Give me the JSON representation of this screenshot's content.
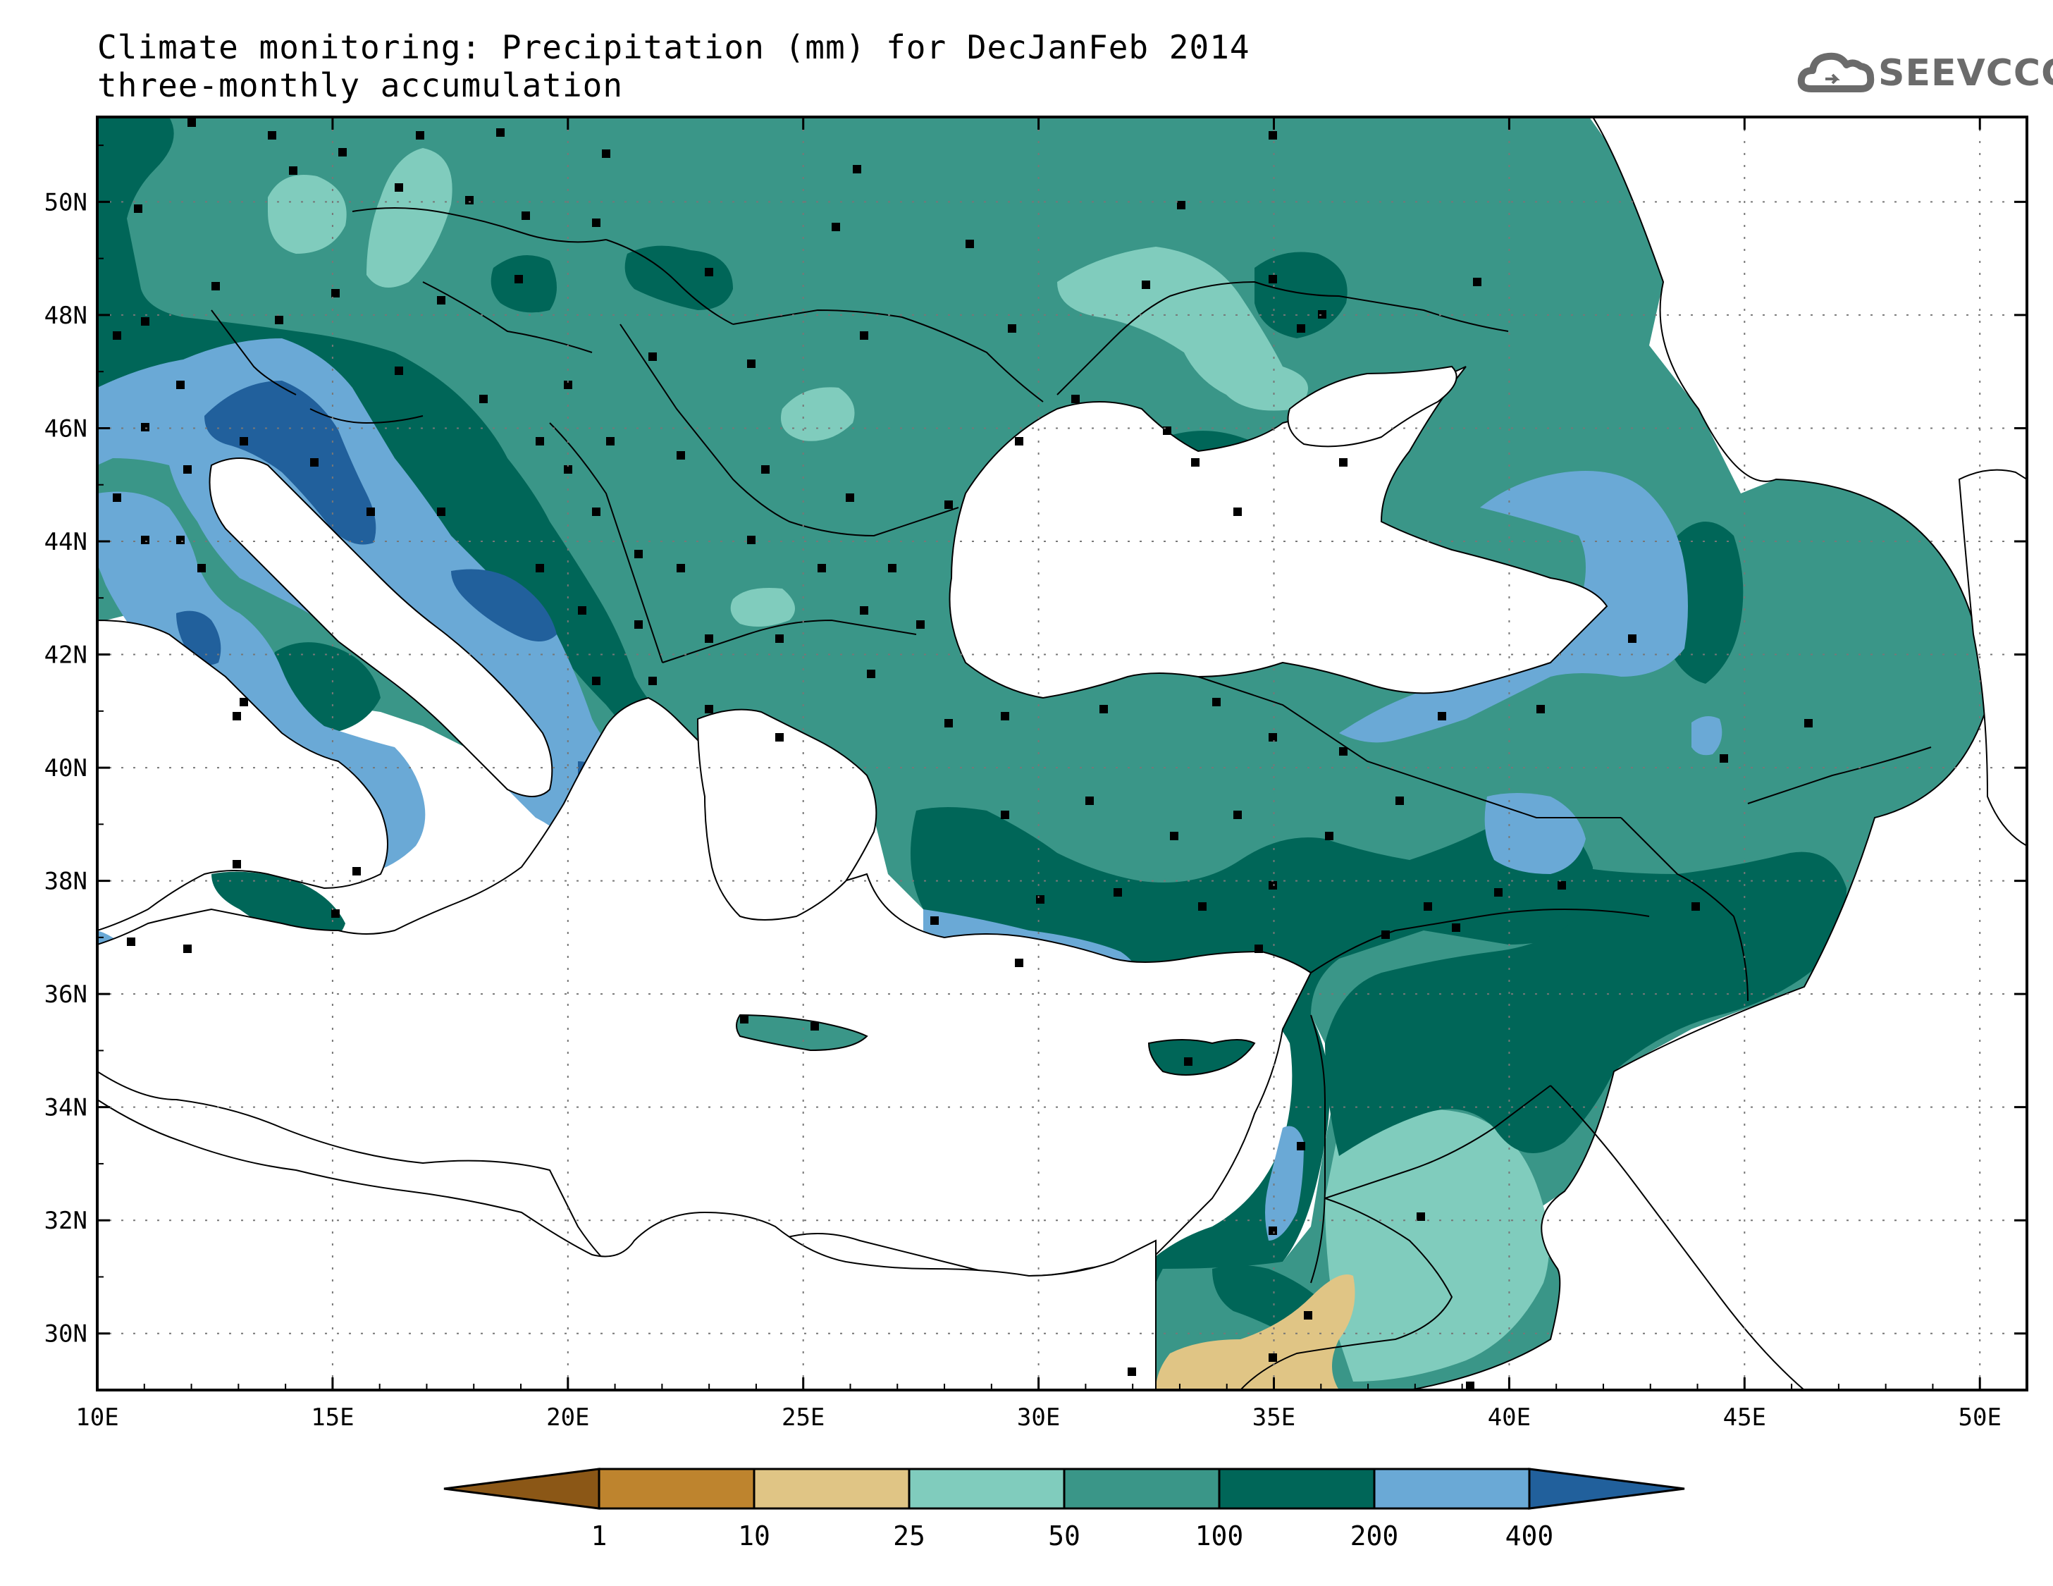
{
  "title_line1": "Climate monitoring: Precipitation (mm) for DecJanFeb 2014",
  "title_line2": "three-monthly accumulation",
  "logo_text": "SEEVCCC",
  "logo_icon": "cloud-icon",
  "map": {
    "lon_range": [
      10,
      51
    ],
    "lat_range": [
      29,
      51.5
    ],
    "x_ticks": [
      {
        "value": 10,
        "label": "10E"
      },
      {
        "value": 15,
        "label": "15E"
      },
      {
        "value": 20,
        "label": "20E"
      },
      {
        "value": 25,
        "label": "25E"
      },
      {
        "value": 30,
        "label": "30E"
      },
      {
        "value": 35,
        "label": "35E"
      },
      {
        "value": 40,
        "label": "40E"
      },
      {
        "value": 45,
        "label": "45E"
      },
      {
        "value": 50,
        "label": "50E"
      }
    ],
    "y_ticks": [
      {
        "value": 30,
        "label": "30N"
      },
      {
        "value": 32,
        "label": "32N"
      },
      {
        "value": 34,
        "label": "34N"
      },
      {
        "value": 36,
        "label": "36N"
      },
      {
        "value": 38,
        "label": "38N"
      },
      {
        "value": 40,
        "label": "40N"
      },
      {
        "value": 42,
        "label": "42N"
      },
      {
        "value": 44,
        "label": "44N"
      },
      {
        "value": 46,
        "label": "46N"
      },
      {
        "value": 48,
        "label": "48N"
      },
      {
        "value": 50,
        "label": "50N"
      }
    ],
    "grid": "dotted"
  },
  "colorbar": {
    "boundaries": [
      "1",
      "10",
      "25",
      "50",
      "100",
      "200",
      "400"
    ],
    "colors": [
      "#8b5716",
      "#be842e",
      "#e0c585",
      "#80ccbd",
      "#3a9688",
      "#006658",
      "#6aa9d6",
      "#21609c"
    ]
  }
}
